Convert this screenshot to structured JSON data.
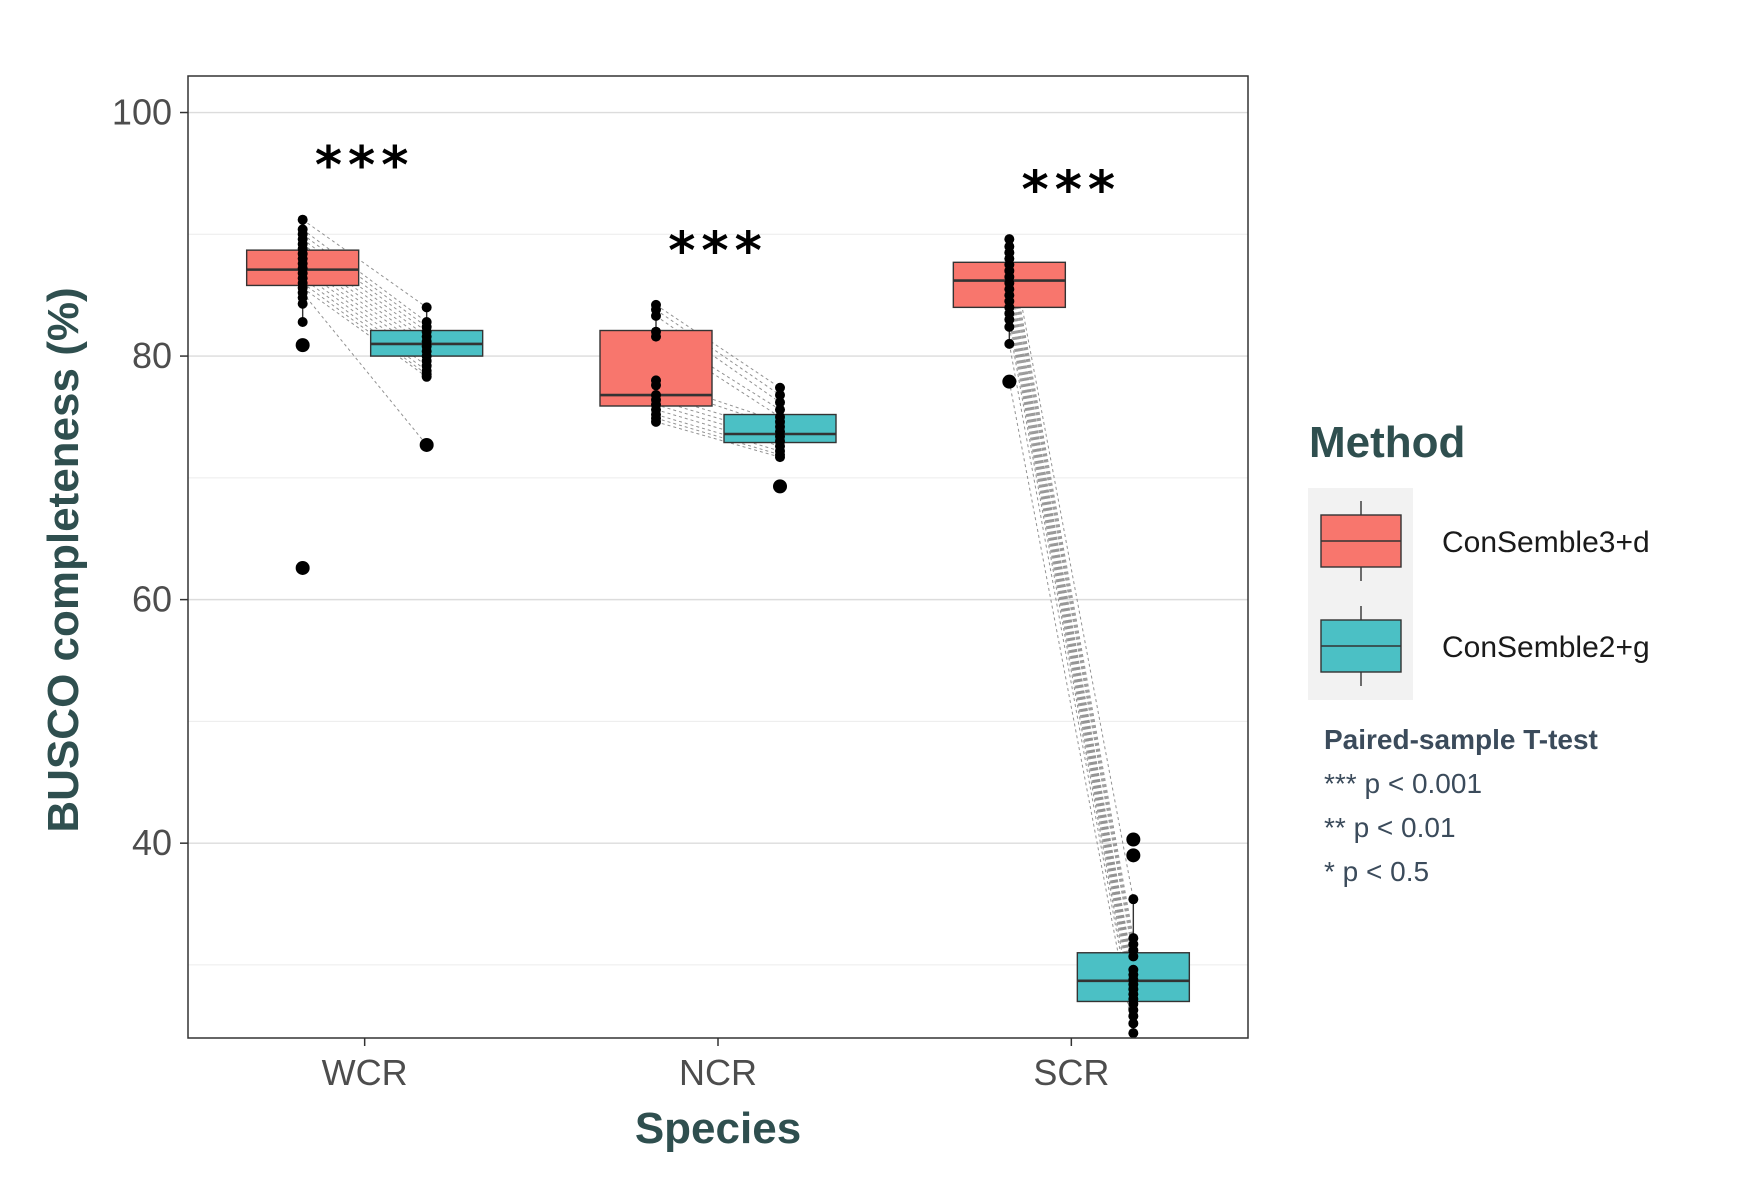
{
  "chart_data": {
    "type": "box",
    "xlabel": "Species",
    "ylabel": "BUSCO completeness (%)",
    "ylim": [
      24,
      103
    ],
    "yticks": [
      40,
      60,
      80,
      100
    ],
    "grid": true,
    "categories": [
      "WCR",
      "NCR",
      "SCR"
    ],
    "legend_position": "right",
    "legend": {
      "title": "Method",
      "entries": [
        {
          "name": "ConSemble3+d",
          "color": "#F8766D"
        },
        {
          "name": "ConSemble2+g",
          "color": "#4BC0C5"
        }
      ]
    },
    "significance": [
      {
        "category": "WCR",
        "label": "***",
        "y": 97
      },
      {
        "category": "NCR",
        "label": "***",
        "y": 90
      },
      {
        "category": "SCR",
        "label": "***",
        "y": 95
      }
    ],
    "note": {
      "title": "Paired-sample T-test",
      "lines": [
        "*** p < 0.001",
        "** p < 0.01",
        "* p < 0.5"
      ]
    },
    "series": [
      {
        "name": "ConSemble3+d",
        "boxes": [
          {
            "category": "WCR",
            "q1": 85.8,
            "median": 87.1,
            "q3": 88.7,
            "whisker_low": 82.8,
            "whisker_high": 91.2,
            "points": [
              91.2,
              90.4,
              90.0,
              89.6,
              89.2,
              88.8,
              88.4,
              88.0,
              87.6,
              87.2,
              86.8,
              86.4,
              86.0,
              85.6,
              85.2,
              84.8,
              84.3,
              82.8,
              80.9,
              62.6
            ],
            "outliers": [
              80.9,
              62.6
            ]
          },
          {
            "category": "NCR",
            "q1": 75.9,
            "median": 76.8,
            "q3": 82.1,
            "whisker_low": 74.6,
            "whisker_high": 84.2,
            "points": [
              84.2,
              83.8,
              83.3,
              82.0,
              81.6,
              78.0,
              77.6,
              76.8,
              76.4,
              76.0,
              75.6,
              75.2,
              74.9,
              74.6
            ],
            "outliers": []
          },
          {
            "category": "SCR",
            "q1": 84.0,
            "median": 86.2,
            "q3": 87.7,
            "whisker_low": 81.0,
            "whisker_high": 89.6,
            "points": [
              89.6,
              89.0,
              88.5,
              88.0,
              87.5,
              87.0,
              86.5,
              86.0,
              85.5,
              85.0,
              84.5,
              84.0,
              83.5,
              83.0,
              82.4,
              81.0,
              77.9
            ],
            "outliers": [
              77.9
            ]
          }
        ]
      },
      {
        "name": "ConSemble2+g",
        "boxes": [
          {
            "category": "WCR",
            "q1": 80.0,
            "median": 81.0,
            "q3": 82.1,
            "whisker_low": 78.3,
            "whisker_high": 84.0,
            "points": [
              84.0,
              82.8,
              82.4,
              82.0,
              81.6,
              81.2,
              80.8,
              80.4,
              80.0,
              79.6,
              79.2,
              78.8,
              78.5,
              78.3,
              72.7
            ],
            "outliers": [
              72.7
            ]
          },
          {
            "category": "NCR",
            "q1": 72.9,
            "median": 73.6,
            "q3": 75.2,
            "whisker_low": 71.7,
            "whisker_high": 77.4,
            "points": [
              77.4,
              76.8,
              76.2,
              75.6,
              75.0,
              74.6,
              74.2,
              73.8,
              73.4,
              73.0,
              72.6,
              72.2,
              71.9,
              71.7,
              69.3
            ],
            "outliers": [
              69.3
            ]
          },
          {
            "category": "SCR",
            "q1": 27.0,
            "median": 28.7,
            "q3": 31.0,
            "whisker_low": 24.4,
            "whisker_high": 35.4,
            "points": [
              35.4,
              32.2,
              31.7,
              31.2,
              30.7,
              29.6,
              29.2,
              28.8,
              28.4,
              28.0,
              27.6,
              27.2,
              26.8,
              26.3,
              25.8,
              25.2,
              24.4,
              40.3,
              39.0
            ],
            "outliers": [
              40.3,
              39.0
            ]
          }
        ]
      }
    ]
  }
}
